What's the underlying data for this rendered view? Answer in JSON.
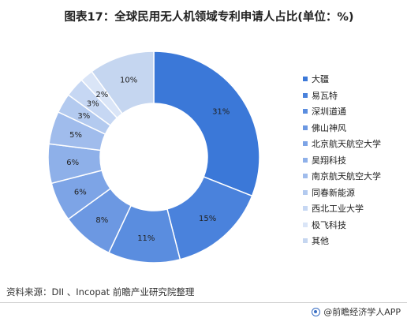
{
  "title": "图表17：全球民用无人机领域专利申请人占比(单位：%)",
  "chart_data": {
    "type": "pie",
    "donut": true,
    "title": "图表17：全球民用无人机领域专利申请人占比(单位：%)",
    "categories": [
      "大疆",
      "易瓦特",
      "深圳道通",
      "佛山神风",
      "北京航天航空大学",
      "昊翔科技",
      "南京航天航空大学",
      "同春新能源",
      "西北工业大学",
      "极飞科技",
      "其他"
    ],
    "values": [
      31,
      15,
      11,
      8,
      6,
      6,
      5,
      3,
      3,
      2,
      10
    ],
    "labels": [
      "31%",
      "15%",
      "11%",
      "8%",
      "6%",
      "6%",
      "5%",
      "3%",
      "3%",
      "2%",
      "10%"
    ],
    "colors": [
      "#3b78d8",
      "#4a82dc",
      "#5a8ddf",
      "#6c98e2",
      "#7da4e6",
      "#8eb0e9",
      "#a0bcec",
      "#b3caef",
      "#c6d7f3",
      "#dae5f7",
      "#c5d6f0"
    ],
    "legend_position": "right"
  },
  "source": "资料来源：DII 、Incopat 前瞻产业研究院整理",
  "brand": "@前瞻经济学人APP"
}
